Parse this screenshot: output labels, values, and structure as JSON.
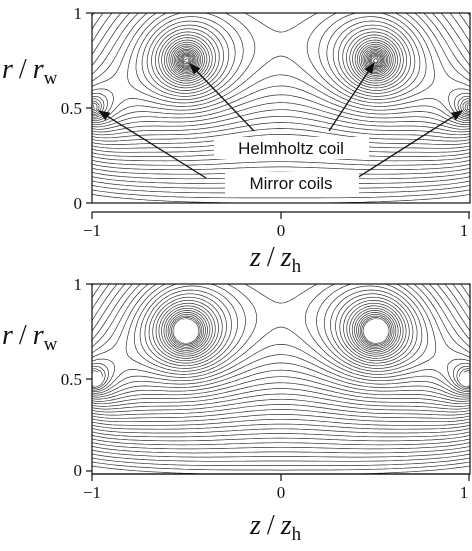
{
  "figure": {
    "panels": [
      {
        "id": "top",
        "y_label_r": "r",
        "y_label_sep": "/",
        "y_label_rw": "r",
        "y_label_rw_sub": "w",
        "y_ticks": [
          "1",
          "0.5",
          "0"
        ],
        "x_ticks": [
          "−1",
          "0",
          "1"
        ],
        "x_label_z": "z",
        "x_label_sep": "/",
        "x_label_zh": "z",
        "x_label_zh_sub": "h",
        "annotations": {
          "helmholtz": "Helmholtz coil",
          "mirror": "Mirror coils"
        }
      },
      {
        "id": "bottom",
        "y_label_r": "r",
        "y_label_sep": "/",
        "y_label_rw": "r",
        "y_label_rw_sub": "w",
        "y_ticks": [
          "1",
          "0.5",
          "0"
        ],
        "x_ticks": [
          "−1",
          "0",
          "1"
        ],
        "x_label_z": "z",
        "x_label_sep": "/",
        "x_label_zh": "z",
        "x_label_zh_sub": "h"
      }
    ]
  },
  "chart_data": [
    {
      "type": "contour",
      "xlim": [
        -1,
        1
      ],
      "ylim": [
        0,
        1
      ],
      "coils": [
        {
          "z": -0.5,
          "r": 0.75,
          "kind": "helmholtz"
        },
        {
          "z": 0.5,
          "r": 0.75,
          "kind": "helmholtz"
        },
        {
          "z": -1,
          "r": 0.5,
          "kind": "mirror"
        },
        {
          "z": 1,
          "r": 0.5,
          "kind": "mirror"
        }
      ]
    },
    {
      "type": "contour",
      "xlim": [
        -1,
        1
      ],
      "ylim": [
        0,
        1
      ],
      "coils": [
        {
          "z": -0.5,
          "r": 0.75,
          "kind": "helmholtz"
        },
        {
          "z": 0.5,
          "r": 0.75,
          "kind": "helmholtz"
        },
        {
          "z": -1,
          "r": 0.5,
          "kind": "mirror"
        },
        {
          "z": 1,
          "r": 0.5,
          "kind": "mirror"
        }
      ]
    }
  ]
}
